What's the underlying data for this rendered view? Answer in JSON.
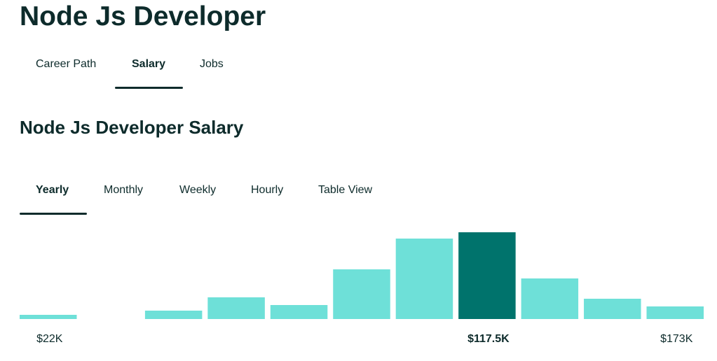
{
  "header": {
    "title": "Node Js Developer"
  },
  "tabs": [
    "Career Path",
    "Salary",
    "Jobs"
  ],
  "active_tab": 1,
  "section_title": "Node Js Developer Salary",
  "period_tabs": [
    "Yearly",
    "Monthly",
    "Weekly",
    "Hourly",
    "Table View"
  ],
  "active_period_tab": 0,
  "chart_data": {
    "type": "bar",
    "categories": [
      "$22K",
      null,
      null,
      null,
      null,
      null,
      null,
      "$117.5K",
      null,
      null,
      "$173K"
    ],
    "values": [
      6,
      0,
      12,
      31,
      20,
      71,
      115,
      124,
      58,
      29,
      18
    ],
    "color": "#6ee0d8",
    "highlight_color": "#00736c",
    "highlight": 7
  }
}
